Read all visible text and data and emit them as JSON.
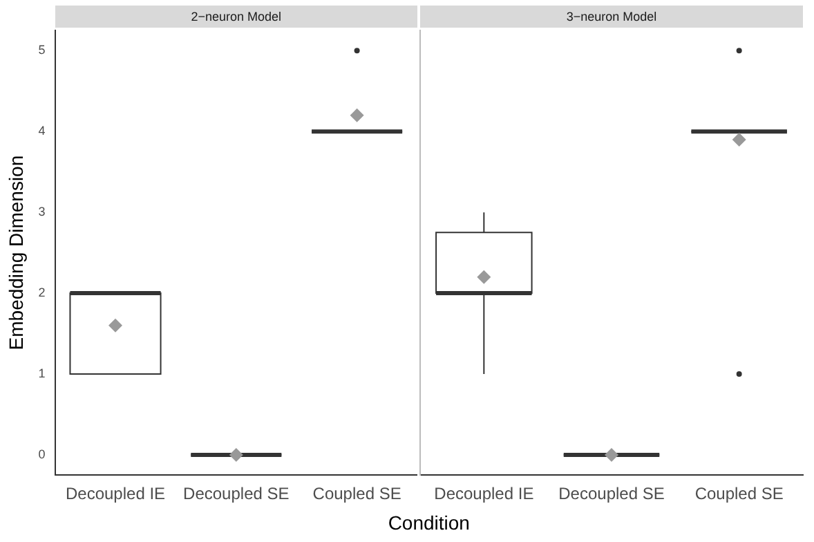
{
  "chart_data": [
    {
      "type": "box",
      "title": "2−neuron Model",
      "xlabel": "Condition",
      "ylabel": "Embedding Dimension",
      "categories": [
        "Decoupled IE",
        "Decoupled SE",
        "Coupled SE"
      ],
      "color": "#333333",
      "boxes": [
        {
          "low": 1,
          "q1": 1,
          "median": 2,
          "q3": 2,
          "high": 2,
          "mean": 1.6
        },
        {
          "low": 0,
          "q1": 0,
          "median": 0,
          "q3": 0,
          "high": 0,
          "mean": 0
        },
        {
          "low": 4,
          "q1": 4,
          "median": 4,
          "q3": 4,
          "high": 4,
          "mean": 4.2,
          "outliers": [
            5
          ]
        }
      ],
      "ylim": [
        -0.25,
        5.25
      ],
      "yticks": [
        0,
        1,
        2,
        3,
        4,
        5
      ],
      "grid": false
    },
    {
      "type": "box",
      "title": "3−neuron Model",
      "categories": [
        "Decoupled IE",
        "Decoupled SE",
        "Coupled SE"
      ],
      "color": "#333333",
      "boxes": [
        {
          "low": 1,
          "q1": 2,
          "median": 2,
          "q3": 2.75,
          "high": 3,
          "mean": 2.2
        },
        {
          "low": 0,
          "q1": 0,
          "median": 0,
          "q3": 0,
          "high": 0,
          "mean": 0
        },
        {
          "low": 4,
          "q1": 4,
          "median": 4,
          "q3": 4,
          "high": 4,
          "mean": 3.9,
          "outliers": [
            5,
            1
          ]
        }
      ],
      "ylim": [
        -0.25,
        5.25
      ],
      "yticks": [
        0,
        1,
        2,
        3,
        4,
        5
      ],
      "grid": false,
      "tick_labels": "x"
    }
  ]
}
